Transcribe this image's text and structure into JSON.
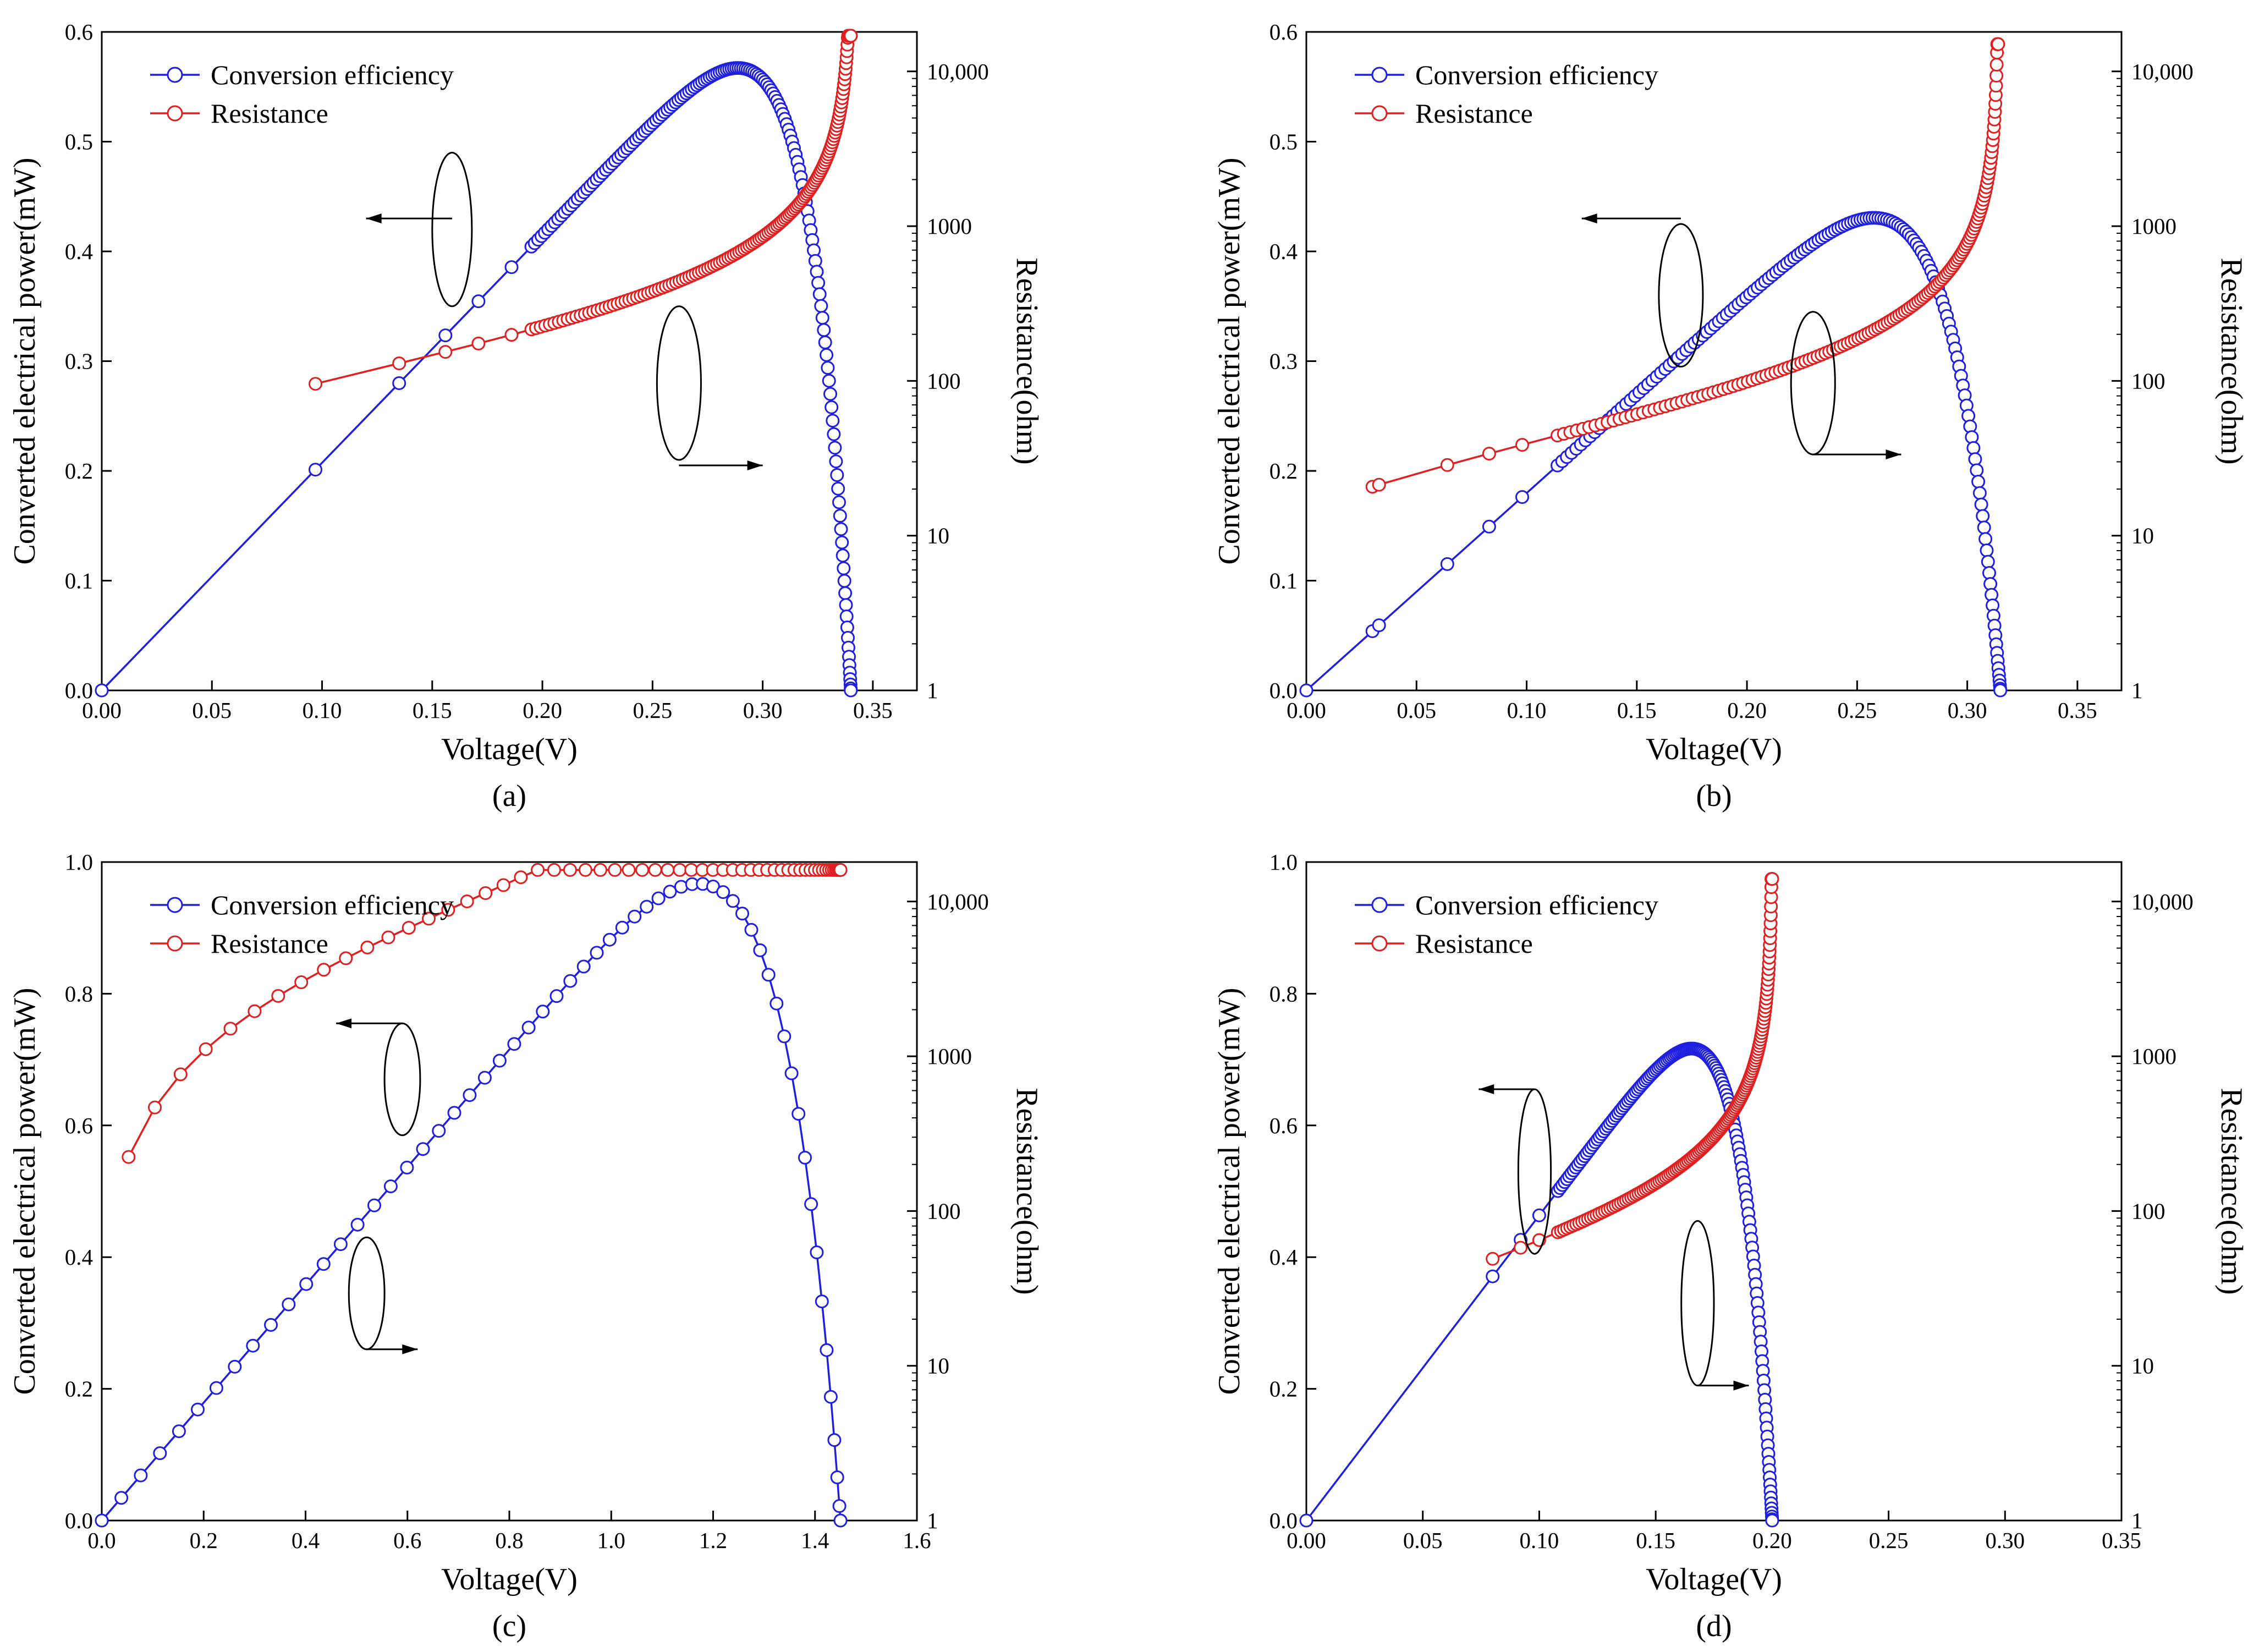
{
  "chart_data": [
    {
      "type": "line",
      "panel_label": "(a)",
      "xlabel": "Voltage(V)",
      "ylabel": "Converted electrical power(mW)",
      "y2label": "Resistance(ohm)",
      "xlim": [
        0,
        0.37
      ],
      "ylim": [
        0,
        0.6
      ],
      "y2lim": [
        1,
        18000
      ],
      "y2scale": "log",
      "xticks": [
        0,
        0.05,
        0.1,
        0.15,
        0.2,
        0.25,
        0.3,
        0.35
      ],
      "xtick_labels": [
        "0.00",
        "0.05",
        "0.10",
        "0.15",
        "0.20",
        "0.25",
        "0.30",
        "0.35"
      ],
      "yticks": [
        0,
        0.1,
        0.2,
        0.3,
        0.4,
        0.5,
        0.6
      ],
      "ytick_labels": [
        "0.0",
        "0.1",
        "0.2",
        "0.3",
        "0.4",
        "0.5",
        "0.6"
      ],
      "y2ticks": [
        1,
        10,
        100,
        1000,
        10000
      ],
      "y2tick_labels": [
        "1",
        "10",
        "100",
        "1000",
        "10,000"
      ],
      "legend_position": "top-left",
      "series": [
        {
          "name": "Conversion efficiency",
          "axis": "left",
          "color": "#1f1fe0",
          "style": {
            "voc": 0.34,
            "vmp": 0.263,
            "pmax": 0.54,
            "k": 3,
            "n": 150,
            "sparse": [
              0.097,
              0.135,
              0.156,
              0.171,
              0.186,
              0.195
            ]
          }
        },
        {
          "name": "Resistance",
          "axis": "right",
          "color": "#e02020",
          "style": {
            "voc": 0.34,
            "r0": 40,
            "rmax": 17000,
            "n": 150,
            "sparse": [
              0.097,
              0.135,
              0.156,
              0.171,
              0.186,
              0.195
            ]
          }
        }
      ],
      "callouts": [
        {
          "series_side": "left",
          "ellipse": [
            0.159,
            0.42,
            0.009,
            0.07
          ],
          "arrow_from": [
            0.159,
            0.43
          ],
          "arrow_to": [
            0.12,
            0.43
          ]
        },
        {
          "series_side": "right",
          "ellipse": [
            0.262,
            0.28,
            0.01,
            0.07
          ],
          "arrow_from": [
            0.262,
            0.205
          ],
          "arrow_to": [
            0.3,
            0.205
          ]
        }
      ]
    },
    {
      "type": "line",
      "panel_label": "(b)",
      "xlabel": "Voltage(V)",
      "ylabel": "Converted electrical power(mW)",
      "y2label": "Resistance(ohm)",
      "xlim": [
        0,
        0.37
      ],
      "ylim": [
        0,
        0.6
      ],
      "y2lim": [
        1,
        18000
      ],
      "y2scale": "log",
      "xticks": [
        0,
        0.05,
        0.1,
        0.15,
        0.2,
        0.25,
        0.3,
        0.35
      ],
      "xtick_labels": [
        "0.00",
        "0.05",
        "0.10",
        "0.15",
        "0.20",
        "0.25",
        "0.30",
        "0.35"
      ],
      "yticks": [
        0,
        0.1,
        0.2,
        0.3,
        0.4,
        0.5,
        0.6
      ],
      "ytick_labels": [
        "0.0",
        "0.1",
        "0.2",
        "0.3",
        "0.4",
        "0.5",
        "0.6"
      ],
      "y2ticks": [
        1,
        10,
        100,
        1000,
        10000
      ],
      "y2tick_labels": [
        "1",
        "10",
        "100",
        "1000",
        "10,000"
      ],
      "legend_position": "top-left",
      "series": [
        {
          "name": "Conversion efficiency",
          "axis": "left",
          "color": "#1f1fe0",
          "style": {
            "voc": 0.315,
            "vmp": 0.23,
            "pmax": 0.407,
            "k": 2.2,
            "n": 150,
            "sparse": [
              0.03,
              0.033,
              0.064,
              0.083,
              0.098,
              0.114
            ]
          }
        },
        {
          "name": "Resistance",
          "axis": "right",
          "color": "#e02020",
          "style": {
            "voc": 0.314,
            "r0": 15,
            "rmax": 15000,
            "n": 150,
            "sparse": [
              0.03,
              0.033,
              0.064,
              0.083,
              0.098,
              0.114
            ]
          }
        }
      ],
      "callouts": [
        {
          "series_side": "left",
          "ellipse": [
            0.17,
            0.36,
            0.01,
            0.065
          ],
          "arrow_from": [
            0.17,
            0.43
          ],
          "arrow_to": [
            0.125,
            0.43
          ]
        },
        {
          "series_side": "right",
          "ellipse": [
            0.23,
            0.28,
            0.01,
            0.065
          ],
          "arrow_from": [
            0.23,
            0.215
          ],
          "arrow_to": [
            0.27,
            0.215
          ]
        }
      ]
    },
    {
      "type": "line",
      "panel_label": "(c)",
      "xlabel": "Voltage(V)",
      "ylabel": "Converted electrical power(mW)",
      "y2label": "Resistance(ohm)",
      "xlim": [
        0,
        1.6
      ],
      "ylim": [
        0,
        1.0
      ],
      "y2lim": [
        1,
        18000
      ],
      "y2scale": "log",
      "xticks": [
        0,
        0.2,
        0.4,
        0.6,
        0.8,
        1.0,
        1.2,
        1.4,
        1.6
      ],
      "xtick_labels": [
        "0.0",
        "0.2",
        "0.4",
        "0.6",
        "0.8",
        "1.0",
        "1.2",
        "1.4",
        "1.6"
      ],
      "yticks": [
        0,
        0.2,
        0.4,
        0.6,
        0.8,
        1.0
      ],
      "ytick_labels": [
        "0.0",
        "0.2",
        "0.4",
        "0.6",
        "0.8",
        "1.0"
      ],
      "y2ticks": [
        1,
        10,
        100,
        1000,
        10000
      ],
      "y2tick_labels": [
        "1",
        "10",
        "100",
        "1000",
        "10,000"
      ],
      "legend_position": "top-left",
      "series": [
        {
          "name": "Conversion efficiency",
          "axis": "left",
          "color": "#1f1fe0",
          "style": {
            "voc": 1.45,
            "vmp": 1.25,
            "pmax": 0.93,
            "k": 2,
            "n": 60,
            "sparse": []
          }
        },
        {
          "name": "Resistance",
          "axis": "right",
          "color": "#e02020",
          "style": {
            "voc": 1.45,
            "r0": 50,
            "rmax": 16000,
            "n": 60,
            "sparse": [],
            "log_shape": true
          }
        }
      ],
      "callouts": [
        {
          "series_side": "left",
          "ellipse": [
            0.59,
            0.67,
            0.035,
            0.085
          ],
          "arrow_from": [
            0.59,
            0.755
          ],
          "arrow_to": [
            0.46,
            0.755
          ]
        },
        {
          "series_side": "right",
          "ellipse": [
            0.52,
            0.345,
            0.035,
            0.085
          ],
          "arrow_from": [
            0.52,
            0.26
          ],
          "arrow_to": [
            0.62,
            0.26
          ]
        }
      ]
    },
    {
      "type": "line",
      "panel_label": "(d)",
      "xlabel": "Voltage(V)",
      "ylabel": "Converted electrical power(mW)",
      "y2label": "Resistance(ohm)",
      "xlim": [
        0,
        0.35
      ],
      "ylim": [
        0,
        1.0
      ],
      "y2lim": [
        1,
        18000
      ],
      "y2scale": "log",
      "xticks": [
        0,
        0.05,
        0.1,
        0.15,
        0.2,
        0.25,
        0.3,
        0.35
      ],
      "xtick_labels": [
        "0.00",
        "0.05",
        "0.10",
        "0.15",
        "0.20",
        "0.25",
        "0.30",
        "0.35"
      ],
      "yticks": [
        0,
        0.2,
        0.4,
        0.6,
        0.8,
        1.0
      ],
      "ytick_labels": [
        "0.0",
        "0.2",
        "0.4",
        "0.6",
        "0.8",
        "1.0"
      ],
      "y2ticks": [
        1,
        10,
        100,
        1000,
        10000
      ],
      "y2tick_labels": [
        "1",
        "10",
        "100",
        "1000",
        "10,000"
      ],
      "legend_position": "top-left",
      "series": [
        {
          "name": "Conversion efficiency",
          "axis": "left",
          "color": "#1f1fe0",
          "style": {
            "voc": 0.2,
            "vmp": 0.155,
            "pmax": 0.7,
            "k": 2.4,
            "n": 150,
            "sparse": [
              0.08,
              0.092,
              0.1,
              0.108
            ]
          }
        },
        {
          "name": "Resistance",
          "axis": "right",
          "color": "#e02020",
          "style": {
            "voc": 0.2,
            "r0": 15,
            "rmax": 14000,
            "n": 150,
            "sparse": [
              0.08,
              0.092,
              0.1,
              0.108
            ]
          }
        }
      ],
      "callouts": [
        {
          "series_side": "left",
          "ellipse": [
            0.098,
            0.53,
            0.007,
            0.125
          ],
          "arrow_from": [
            0.098,
            0.655
          ],
          "arrow_to": [
            0.074,
            0.655
          ]
        },
        {
          "series_side": "right",
          "ellipse": [
            0.168,
            0.33,
            0.007,
            0.125
          ],
          "arrow_from": [
            0.168,
            0.205
          ],
          "arrow_to": [
            0.19,
            0.205
          ]
        }
      ]
    }
  ]
}
